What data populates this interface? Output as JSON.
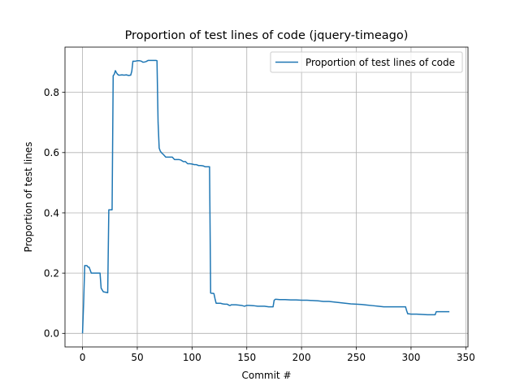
{
  "chart_data": {
    "type": "line",
    "title": "Proportion of test lines of code (jquery-timeago)",
    "xlabel": "Commit #",
    "ylabel": "Proportion of test lines",
    "xlim": [
      -16,
      352
    ],
    "ylim": [
      -0.045,
      0.95
    ],
    "xticks": [
      0,
      50,
      100,
      150,
      200,
      250,
      300,
      350
    ],
    "yticks": [
      0.0,
      0.2,
      0.4,
      0.6,
      0.8
    ],
    "ytick_labels": [
      "0.0",
      "0.2",
      "0.4",
      "0.6",
      "0.8"
    ],
    "grid": true,
    "legend_position": "top-right",
    "line_color": "#1f77b4",
    "series": [
      {
        "name": "Proportion of test lines of code",
        "x": [
          0,
          1,
          2,
          4,
          5,
          6,
          8,
          16,
          17,
          19,
          23,
          24,
          25,
          26,
          27,
          28,
          29,
          30,
          31,
          32,
          33,
          34,
          36,
          38,
          40,
          42,
          44,
          45,
          46,
          48,
          50,
          52,
          54,
          55,
          56,
          58,
          60,
          62,
          64,
          66,
          67,
          68,
          69,
          70,
          71,
          72,
          74,
          76,
          78,
          80,
          82,
          84,
          86,
          88,
          90,
          92,
          94,
          96,
          98,
          100,
          102,
          104,
          106,
          108,
          110,
          112,
          114,
          115,
          116,
          117,
          118,
          119,
          120,
          121,
          122,
          124,
          126,
          128,
          130,
          132,
          134,
          135,
          136,
          140,
          145,
          148,
          150,
          151,
          152,
          156,
          160,
          166,
          170,
          172,
          174,
          175,
          176,
          177,
          180,
          185,
          190,
          195,
          200,
          205,
          210,
          215,
          220,
          225,
          230,
          235,
          240,
          245,
          250,
          255,
          260,
          265,
          270,
          275,
          280,
          285,
          290,
          295,
          296,
          297,
          298,
          300,
          305,
          310,
          315,
          320,
          322,
          323,
          325,
          330,
          335
        ],
        "y": [
          0.0,
          0.1,
          0.225,
          0.225,
          0.22,
          0.22,
          0.2,
          0.2,
          0.15,
          0.138,
          0.135,
          0.41,
          0.41,
          0.41,
          0.41,
          0.855,
          0.86,
          0.872,
          0.865,
          0.86,
          0.857,
          0.857,
          0.858,
          0.857,
          0.858,
          0.856,
          0.857,
          0.87,
          0.903,
          0.903,
          0.905,
          0.905,
          0.903,
          0.9,
          0.9,
          0.902,
          0.906,
          0.906,
          0.906,
          0.906,
          0.906,
          0.905,
          0.7,
          0.615,
          0.605,
          0.6,
          0.593,
          0.585,
          0.585,
          0.585,
          0.585,
          0.577,
          0.577,
          0.577,
          0.575,
          0.57,
          0.57,
          0.563,
          0.563,
          0.562,
          0.56,
          0.56,
          0.557,
          0.557,
          0.556,
          0.553,
          0.553,
          0.553,
          0.553,
          0.134,
          0.133,
          0.133,
          0.132,
          0.115,
          0.1,
          0.1,
          0.1,
          0.098,
          0.097,
          0.097,
          0.093,
          0.093,
          0.095,
          0.095,
          0.093,
          0.09,
          0.093,
          0.093,
          0.093,
          0.092,
          0.09,
          0.09,
          0.088,
          0.088,
          0.088,
          0.11,
          0.113,
          0.113,
          0.112,
          0.112,
          0.111,
          0.111,
          0.11,
          0.11,
          0.109,
          0.108,
          0.106,
          0.106,
          0.104,
          0.102,
          0.1,
          0.098,
          0.097,
          0.096,
          0.094,
          0.092,
          0.09,
          0.088,
          0.088,
          0.088,
          0.088,
          0.088,
          0.075,
          0.065,
          0.065,
          0.064,
          0.064,
          0.063,
          0.062,
          0.062,
          0.062,
          0.072,
          0.072,
          0.072,
          0.072
        ]
      }
    ]
  }
}
